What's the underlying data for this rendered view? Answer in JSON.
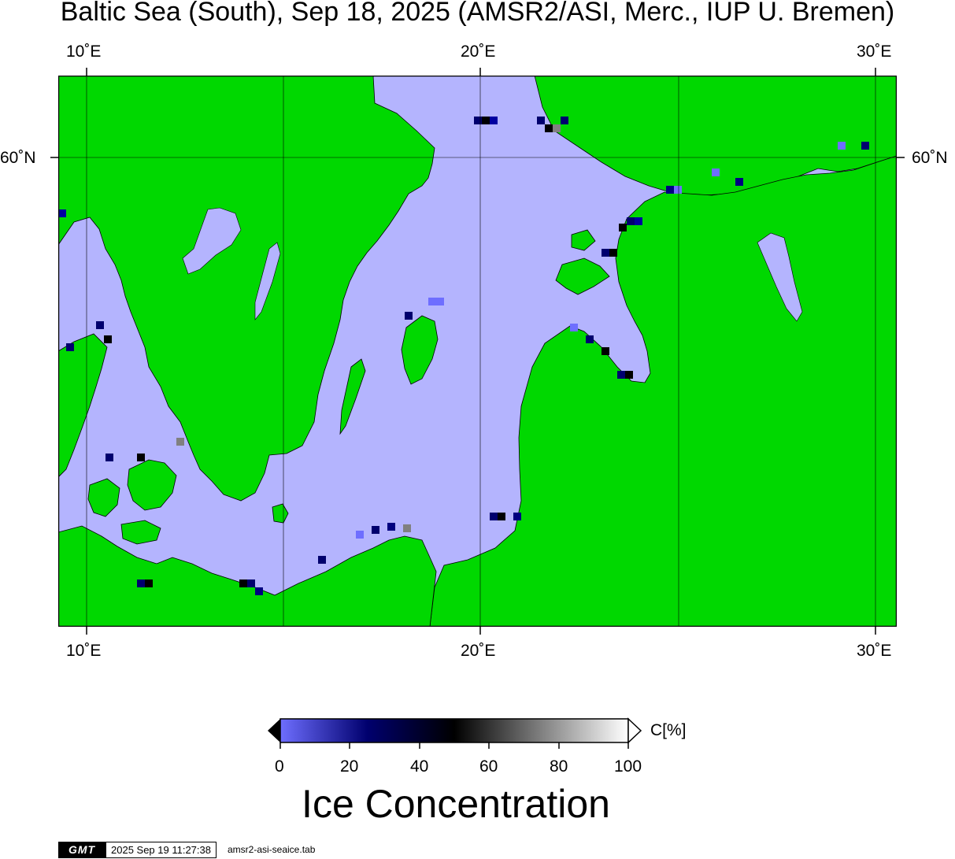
{
  "title": "Baltic Sea (South), Sep 18, 2025 (AMSR2/ASI, Merc., IUP U. Bremen)",
  "map": {
    "lon_range": [
      9.3,
      30.5
    ],
    "lat_range": [
      53.8,
      61.0
    ],
    "lon_ticks": [
      {
        "lon": 10,
        "label": "10˚E"
      },
      {
        "lon": 20,
        "label": "20˚E"
      },
      {
        "lon": 30,
        "label": "30˚E"
      }
    ],
    "lat_ticks": [
      {
        "lat": 60,
        "label": "60˚N"
      }
    ],
    "colors": {
      "land": "#00d800",
      "open_water": "#b4b4fe",
      "coast_gray": "#808080",
      "frame": "#000000"
    }
  },
  "colorbar": {
    "unit_label": "C[%]",
    "ticks": [
      "0",
      "20",
      "40",
      "60",
      "80",
      "100"
    ],
    "title": "Ice Concentration",
    "color_stops": [
      "#6e6eff",
      "#00006e",
      "#000000",
      "#808080",
      "#ffffff"
    ]
  },
  "footer": {
    "logo": "GMT",
    "timestamp": "2025 Sep 19 11:27:38",
    "table_name": "amsr2-asi-seaice.tab"
  }
}
